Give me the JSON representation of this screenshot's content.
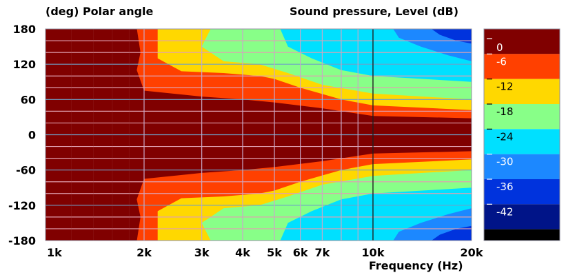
{
  "chart_data": {
    "type": "heatmap",
    "title_left": "(deg)  Polar angle",
    "title_right": "Sound pressure, Level  (dB)",
    "xlabel": "Frequency  (Hz)",
    "xscale": "log",
    "xlim": [
      1000,
      20000
    ],
    "ylim": [
      -180,
      180
    ],
    "x_ticks": [
      {
        "value": 1000,
        "label": "1k"
      },
      {
        "value": 2000,
        "label": "2k"
      },
      {
        "value": 3000,
        "label": "3k"
      },
      {
        "value": 4000,
        "label": "4k"
      },
      {
        "value": 5000,
        "label": "5k"
      },
      {
        "value": 6000,
        "label": "6k"
      },
      {
        "value": 7000,
        "label": "7k"
      },
      {
        "value": 10000,
        "label": "10k"
      },
      {
        "value": 20000,
        "label": "20k"
      }
    ],
    "y_ticks": [
      {
        "value": 180,
        "label": "180"
      },
      {
        "value": 120,
        "label": "120"
      },
      {
        "value": 60,
        "label": "60"
      },
      {
        "value": 0,
        "label": "0"
      },
      {
        "value": -60,
        "label": "-60"
      },
      {
        "value": -120,
        "label": "-120"
      },
      {
        "value": -180,
        "label": "-180"
      }
    ],
    "colorbar": [
      {
        "level": "0",
        "color": "#800000"
      },
      {
        "level": "-6",
        "color": "#ff4000"
      },
      {
        "level": "-12",
        "color": "#ffd800"
      },
      {
        "level": "-18",
        "color": "#88ff88"
      },
      {
        "level": "-24",
        "color": "#00e0ff"
      },
      {
        "level": "-30",
        "color": "#1c88ff"
      },
      {
        "level": "-36",
        "color": "#0033dd"
      },
      {
        "level": "-42",
        "color": "#001488"
      },
      {
        "level": "",
        "color": "#000000"
      }
    ],
    "contour_boundaries_abs_deg": [
      {
        "level": "-6",
        "points": [
          [
            1000,
            181
          ],
          [
            1900,
            181
          ],
          [
            1950,
            140
          ],
          [
            1900,
            110
          ],
          [
            2000,
            75
          ],
          [
            3000,
            65
          ],
          [
            4000,
            60
          ],
          [
            5000,
            55
          ],
          [
            7000,
            45
          ],
          [
            10000,
            32
          ],
          [
            20000,
            28
          ]
        ]
      },
      {
        "level": "-12",
        "points": [
          [
            2200,
            181
          ],
          [
            2200,
            130
          ],
          [
            2600,
            108
          ],
          [
            3500,
            105
          ],
          [
            4500,
            100
          ],
          [
            5000,
            95
          ],
          [
            6000,
            80
          ],
          [
            8000,
            60
          ],
          [
            10000,
            50
          ],
          [
            20000,
            42
          ]
        ]
      },
      {
        "level": "-18",
        "points": [
          [
            3200,
            181
          ],
          [
            3000,
            150
          ],
          [
            3500,
            125
          ],
          [
            4500,
            120
          ],
          [
            5500,
            105
          ],
          [
            7000,
            85
          ],
          [
            10000,
            70
          ],
          [
            20000,
            60
          ]
        ]
      },
      {
        "level": "-24",
        "points": [
          [
            5200,
            181
          ],
          [
            5500,
            150
          ],
          [
            6500,
            130
          ],
          [
            8000,
            110
          ],
          [
            10000,
            100
          ],
          [
            20000,
            90
          ]
        ]
      },
      {
        "level": "-30",
        "points": [
          [
            11500,
            181
          ],
          [
            12000,
            165
          ],
          [
            14000,
            150
          ],
          [
            17000,
            135
          ],
          [
            20000,
            125
          ]
        ]
      },
      {
        "level": "-36",
        "points": [
          [
            15000,
            181
          ],
          [
            16000,
            170
          ],
          [
            18000,
            160
          ],
          [
            20000,
            155
          ]
        ]
      }
    ]
  }
}
